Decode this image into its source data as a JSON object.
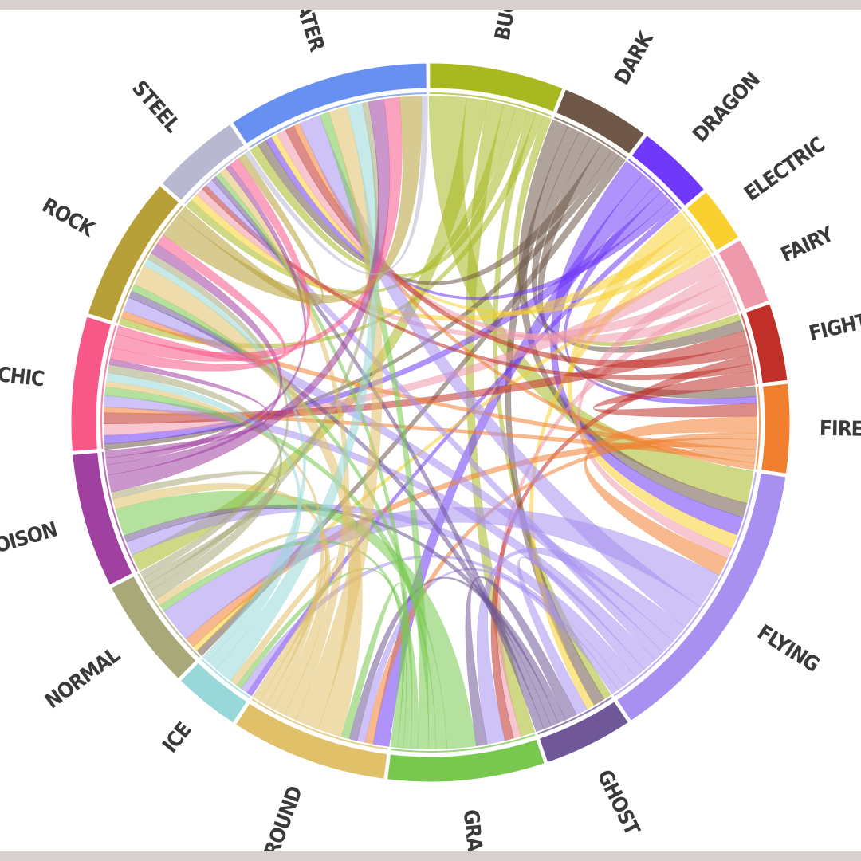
{
  "chart_data": {
    "type": "chord",
    "groups": [
      {
        "name": "BUG",
        "color": "#a8b820",
        "share": 0.06
      },
      {
        "name": "DARK",
        "color": "#705848",
        "share": 0.04
      },
      {
        "name": "DRAGON",
        "color": "#7038f8",
        "share": 0.035
      },
      {
        "name": "ELECTRIC",
        "color": "#f8d030",
        "share": 0.025
      },
      {
        "name": "FAIRY",
        "color": "#ee99ac",
        "share": 0.03
      },
      {
        "name": "FIGHTING",
        "color": "#c03028",
        "share": 0.035
      },
      {
        "name": "FIRE",
        "color": "#f08030",
        "share": 0.04
      },
      {
        "name": "FLYING",
        "color": "#a890f0",
        "share": 0.13
      },
      {
        "name": "GHOST",
        "color": "#705898",
        "share": 0.04
      },
      {
        "name": "GRASS",
        "color": "#78c850",
        "share": 0.07
      },
      {
        "name": "GROUND",
        "color": "#e0c068",
        "share": 0.07
      },
      {
        "name": "ICE",
        "color": "#98d8d8",
        "share": 0.03
      },
      {
        "name": "NORMAL",
        "color": "#a8a878",
        "share": 0.05
      },
      {
        "name": "POISON",
        "color": "#a040a0",
        "share": 0.06
      },
      {
        "name": "PSYCHIC",
        "color": "#f85888",
        "share": 0.06
      },
      {
        "name": "ROCK",
        "color": "#b8a038",
        "share": 0.065
      },
      {
        "name": "STEEL",
        "color": "#b8b8d0",
        "share": 0.04
      },
      {
        "name": "WATER",
        "color": "#6890f0",
        "share": 0.09
      }
    ],
    "links": [
      [
        "BUG",
        "FLYING",
        0.018
      ],
      [
        "BUG",
        "POISON",
        0.01
      ],
      [
        "BUG",
        "GRASS",
        0.008
      ],
      [
        "BUG",
        "STEEL",
        0.006
      ],
      [
        "BUG",
        "WATER",
        0.006
      ],
      [
        "BUG",
        "GHOST",
        0.004
      ],
      [
        "BUG",
        "ROCK",
        0.004
      ],
      [
        "BUG",
        "FIGHTING",
        0.004
      ],
      [
        "DARK",
        "FLYING",
        0.008
      ],
      [
        "DARK",
        "GHOST",
        0.006
      ],
      [
        "DARK",
        "FIGHTING",
        0.006
      ],
      [
        "DARK",
        "FIRE",
        0.006
      ],
      [
        "DARK",
        "WATER",
        0.006
      ],
      [
        "DARK",
        "PSYCHIC",
        0.004
      ],
      [
        "DARK",
        "NORMAL",
        0.004
      ],
      [
        "DRAGON",
        "FLYING",
        0.01
      ],
      [
        "DRAGON",
        "GROUND",
        0.008
      ],
      [
        "DRAGON",
        "FIRE",
        0.004
      ],
      [
        "DRAGON",
        "PSYCHIC",
        0.006
      ],
      [
        "DRAGON",
        "WATER",
        0.004
      ],
      [
        "DRAGON",
        "ICE",
        0.003
      ],
      [
        "ELECTRIC",
        "FLYING",
        0.008
      ],
      [
        "ELECTRIC",
        "STEEL",
        0.006
      ],
      [
        "ELECTRIC",
        "GHOST",
        0.004
      ],
      [
        "ELECTRIC",
        "WATER",
        0.004
      ],
      [
        "ELECTRIC",
        "NORMAL",
        0.003
      ],
      [
        "FAIRY",
        "PSYCHIC",
        0.008
      ],
      [
        "FAIRY",
        "FLYING",
        0.006
      ],
      [
        "FAIRY",
        "STEEL",
        0.006
      ],
      [
        "FAIRY",
        "GRASS",
        0.004
      ],
      [
        "FAIRY",
        "WATER",
        0.006
      ],
      [
        "FIGHTING",
        "PSYCHIC",
        0.008
      ],
      [
        "FIGHTING",
        "WATER",
        0.006
      ],
      [
        "FIGHTING",
        "GRASS",
        0.005
      ],
      [
        "FIGHTING",
        "STEEL",
        0.004
      ],
      [
        "FIGHTING",
        "FIRE",
        0.008
      ],
      [
        "FIRE",
        "FLYING",
        0.01
      ],
      [
        "FIRE",
        "GROUND",
        0.004
      ],
      [
        "FIRE",
        "NORMAL",
        0.006
      ],
      [
        "FIRE",
        "ROCK",
        0.004
      ],
      [
        "FIRE",
        "PSYCHIC",
        0.004
      ],
      [
        "FIRE",
        "WATER",
        0.004
      ],
      [
        "FLYING",
        "NORMAL",
        0.02
      ],
      [
        "FLYING",
        "WATER",
        0.014
      ],
      [
        "FLYING",
        "GRASS",
        0.01
      ],
      [
        "FLYING",
        "ROCK",
        0.008
      ],
      [
        "FLYING",
        "STEEL",
        0.006
      ],
      [
        "FLYING",
        "PSYCHIC",
        0.008
      ],
      [
        "FLYING",
        "GHOST",
        0.006
      ],
      [
        "FLYING",
        "POISON",
        0.008
      ],
      [
        "FLYING",
        "ICE",
        0.004
      ],
      [
        "FLYING",
        "GROUND",
        0.004
      ],
      [
        "GHOST",
        "GRASS",
        0.006
      ],
      [
        "GHOST",
        "POISON",
        0.004
      ],
      [
        "GHOST",
        "GROUND",
        0.004
      ],
      [
        "GHOST",
        "ROCK",
        0.004
      ],
      [
        "GHOST",
        "STEEL",
        0.004
      ],
      [
        "GRASS",
        "POISON",
        0.016
      ],
      [
        "GRASS",
        "PSYCHIC",
        0.006
      ],
      [
        "GRASS",
        "ROCK",
        0.004
      ],
      [
        "GRASS",
        "WATER",
        0.006
      ],
      [
        "GRASS",
        "NORMAL",
        0.004
      ],
      [
        "GRASS",
        "STEEL",
        0.004
      ],
      [
        "GRASS",
        "ICE",
        0.003
      ],
      [
        "GRASS",
        "GROUND",
        0.004
      ],
      [
        "GROUND",
        "ROCK",
        0.012
      ],
      [
        "GROUND",
        "WATER",
        0.012
      ],
      [
        "GROUND",
        "STEEL",
        0.006
      ],
      [
        "GROUND",
        "POISON",
        0.006
      ],
      [
        "GROUND",
        "PSYCHIC",
        0.004
      ],
      [
        "GROUND",
        "NORMAL",
        0.004
      ],
      [
        "GROUND",
        "ICE",
        0.004
      ],
      [
        "ICE",
        "WATER",
        0.01
      ],
      [
        "ICE",
        "PSYCHIC",
        0.006
      ],
      [
        "ICE",
        "ROCK",
        0.004
      ],
      [
        "NORMAL",
        "PSYCHIC",
        0.006
      ],
      [
        "NORMAL",
        "WATER",
        0.004
      ],
      [
        "NORMAL",
        "POISON",
        0.004
      ],
      [
        "NORMAL",
        "ROCK",
        0.004
      ],
      [
        "POISON",
        "WATER",
        0.01
      ],
      [
        "POISON",
        "ROCK",
        0.006
      ],
      [
        "POISON",
        "STEEL",
        0.004
      ],
      [
        "POISON",
        "PSYCHIC",
        0.004
      ],
      [
        "PSYCHIC",
        "STEEL",
        0.008
      ],
      [
        "PSYCHIC",
        "WATER",
        0.01
      ],
      [
        "PSYCHIC",
        "ROCK",
        0.006
      ],
      [
        "ROCK",
        "WATER",
        0.014
      ],
      [
        "ROCK",
        "STEEL",
        0.006
      ],
      [
        "STEEL",
        "WATER",
        0.004
      ]
    ]
  }
}
